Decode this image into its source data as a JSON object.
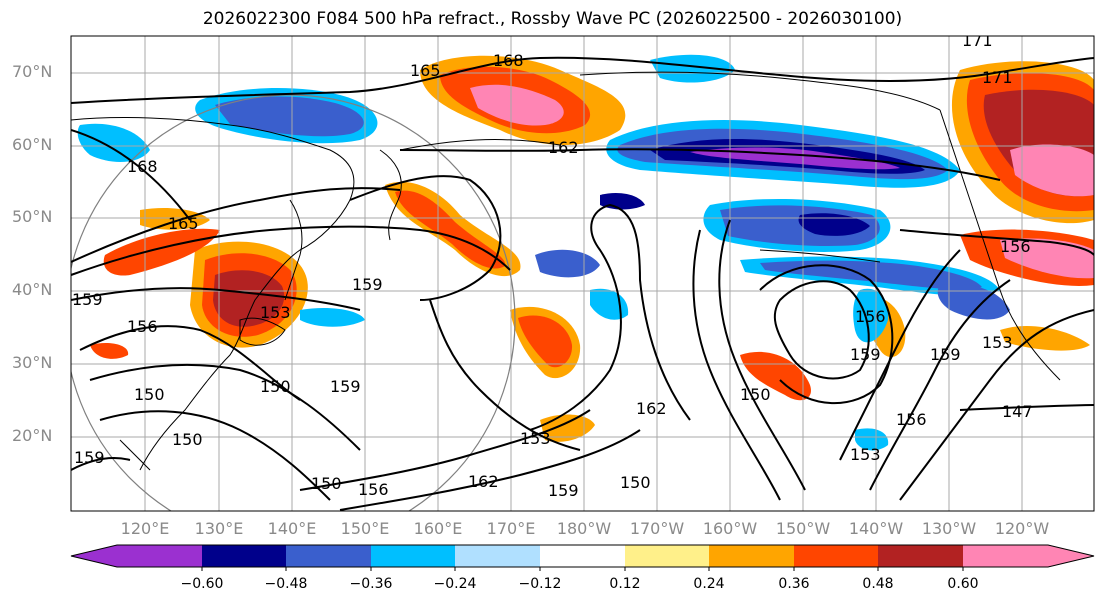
{
  "title": "2026022300 F084 500 hPa refract., Rossby Wave PC (2026022500 - 2026030100)",
  "lat_labels": [
    "70°N",
    "60°N",
    "50°N",
    "40°N",
    "30°N",
    "20°N"
  ],
  "lon_labels": [
    "120°E",
    "130°E",
    "140°E",
    "150°E",
    "160°E",
    "170°E",
    "180°W",
    "170°W",
    "160°W",
    "150°W",
    "140°W",
    "130°W",
    "120°W"
  ],
  "colorbar": {
    "ticks": [
      "−0.60",
      "−0.48",
      "−0.36",
      "−0.24",
      "−0.12",
      "0.12",
      "0.24",
      "0.36",
      "0.48",
      "0.60"
    ],
    "colors": [
      "#9b30d0",
      "#00008b",
      "#3a5fcd",
      "#00bfff",
      "#b0e0ff",
      "#ffffff",
      "#fff08a",
      "#ffa500",
      "#ff4500",
      "#b22222",
      "#ff85b4"
    ]
  },
  "contour_labels": [
    "168",
    "165",
    "168",
    "171",
    "171",
    "162",
    "165",
    "159",
    "159",
    "153",
    "156",
    "150",
    "159",
    "150",
    "150",
    "150",
    "156",
    "162",
    "153",
    "159",
    "162",
    "150",
    "150",
    "153",
    "156",
    "159",
    "156",
    "159",
    "153",
    "147",
    "156",
    "159"
  ]
}
